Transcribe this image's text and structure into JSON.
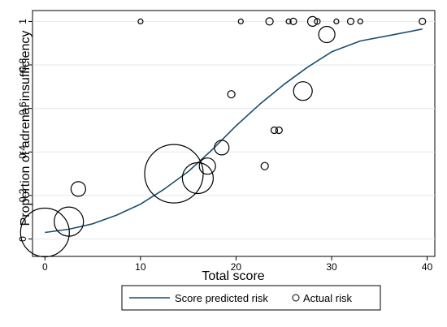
{
  "chart_data": {
    "type": "scatter",
    "xlabel": "Total score",
    "ylabel": "Proportion of adrenal insufficiency",
    "xlim": [
      -1.3,
      40.8
    ],
    "ylim": [
      -0.08,
      1.05
    ],
    "x_ticks": [
      0,
      10,
      20,
      30,
      40
    ],
    "y_ticks": [
      0,
      0.2,
      0.4,
      0.6,
      0.8,
      1
    ],
    "y_tick_labels": [
      "0",
      "0.2",
      "0.4",
      "0.6",
      "0.8",
      "1"
    ],
    "grid": "horizontal",
    "legend_position": "bottom",
    "legend": [
      "Score predicted risk",
      "Actual risk"
    ],
    "line_color": "#1a4f72",
    "series": [
      {
        "name": "Score predicted risk",
        "type": "line",
        "x": [
          0,
          2.5,
          5,
          7.5,
          10,
          12.5,
          15,
          17.5,
          20,
          22.5,
          25,
          27.5,
          30,
          33,
          36,
          39.5
        ],
        "y": [
          0.03,
          0.045,
          0.07,
          0.11,
          0.16,
          0.23,
          0.31,
          0.41,
          0.52,
          0.62,
          0.71,
          0.79,
          0.86,
          0.91,
          0.935,
          0.965
        ]
      },
      {
        "name": "Actual risk",
        "type": "scatter",
        "x": [
          0,
          2.5,
          3.5,
          10,
          13.5,
          16,
          17,
          18.5,
          19.5,
          20.5,
          23,
          23.5,
          24,
          24.5,
          25.5,
          26,
          27,
          28,
          28.5,
          29.5,
          30.5,
          32,
          33,
          39.5
        ],
        "y": [
          0.03,
          0.08,
          0.23,
          1,
          0.3,
          0.28,
          0.335,
          0.42,
          0.665,
          1,
          0.335,
          1,
          0.5,
          0.5,
          1,
          1,
          0.68,
          1,
          1,
          0.94,
          1,
          1,
          1,
          1
        ],
        "size": [
          30,
          18,
          9,
          3,
          36,
          19,
          10,
          9,
          4.5,
          3,
          4.5,
          4.5,
          4,
          4,
          3,
          4,
          11.5,
          6,
          3.5,
          10,
          3,
          4,
          3,
          4
        ]
      }
    ]
  }
}
